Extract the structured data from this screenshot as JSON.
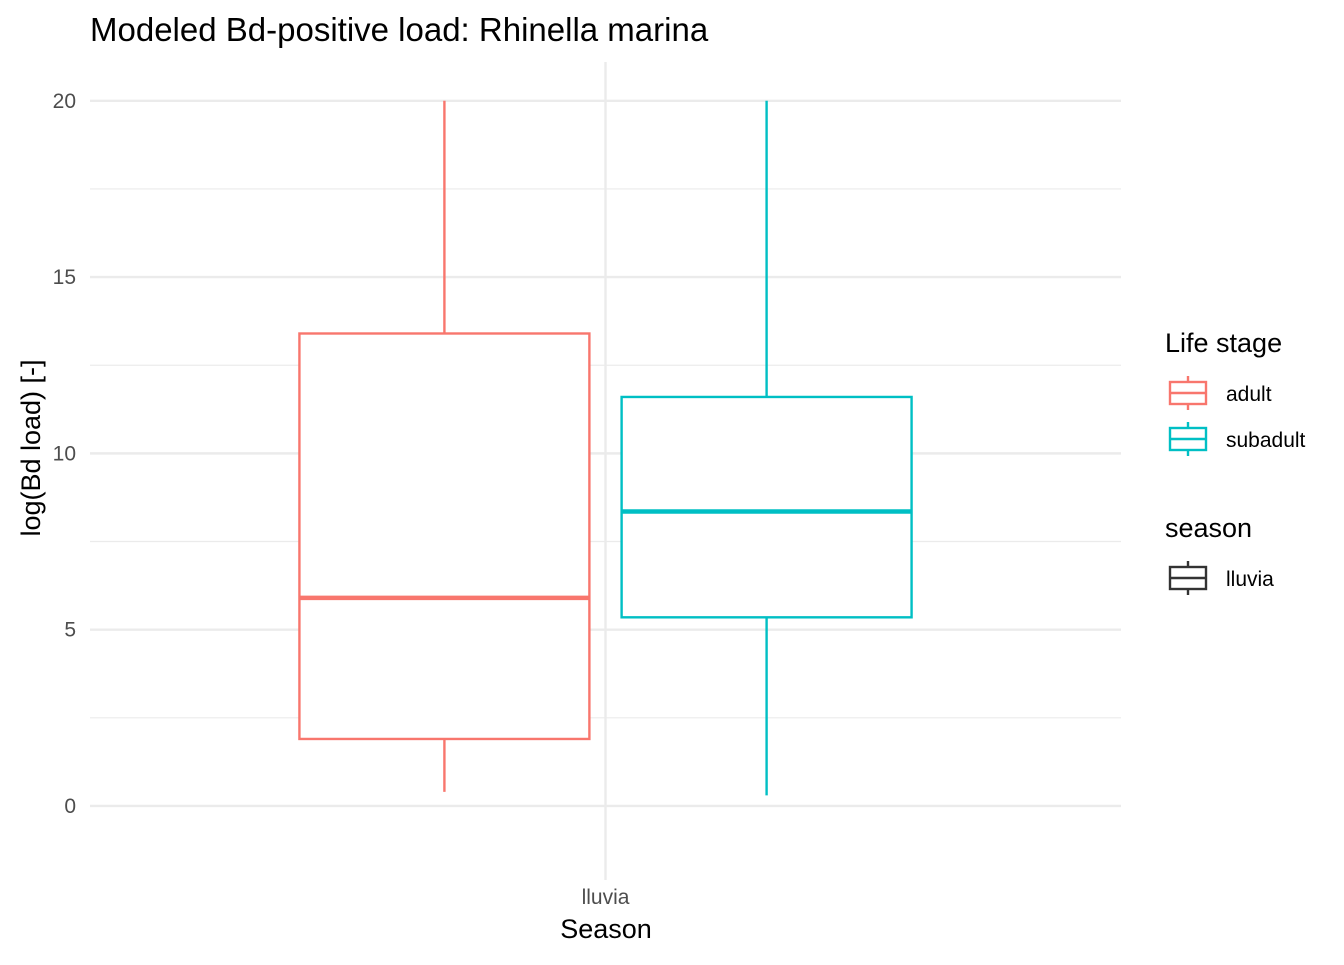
{
  "chart_data": {
    "type": "boxplot",
    "title": "Modeled Bd-positive load: Rhinella marina",
    "xlabel": "Season",
    "ylabel": "log(Bd load) [-]",
    "categories": [
      "lluvia"
    ],
    "ylim": [
      -2.1,
      21.1
    ],
    "yticks": [
      0,
      5,
      10,
      15,
      20
    ],
    "grid": true,
    "series": [
      {
        "name": "adult",
        "color": "#F8766D",
        "boxes": [
          {
            "category": "lluvia",
            "min": 0.4,
            "q1": 1.9,
            "median": 5.9,
            "q3": 13.4,
            "max": 20.0
          }
        ]
      },
      {
        "name": "subadult",
        "color": "#00BFC4",
        "boxes": [
          {
            "category": "lluvia",
            "min": 0.3,
            "q1": 5.35,
            "median": 8.35,
            "q3": 11.6,
            "max": 20.0
          }
        ]
      }
    ],
    "legends": [
      {
        "title": "Life stage",
        "items": [
          {
            "label": "adult",
            "color": "#F8766D"
          },
          {
            "label": "subadult",
            "color": "#00BFC4"
          }
        ]
      },
      {
        "title": "season",
        "items": [
          {
            "label": "lluvia",
            "color": "#333333"
          }
        ]
      }
    ],
    "legend_position": "right"
  }
}
